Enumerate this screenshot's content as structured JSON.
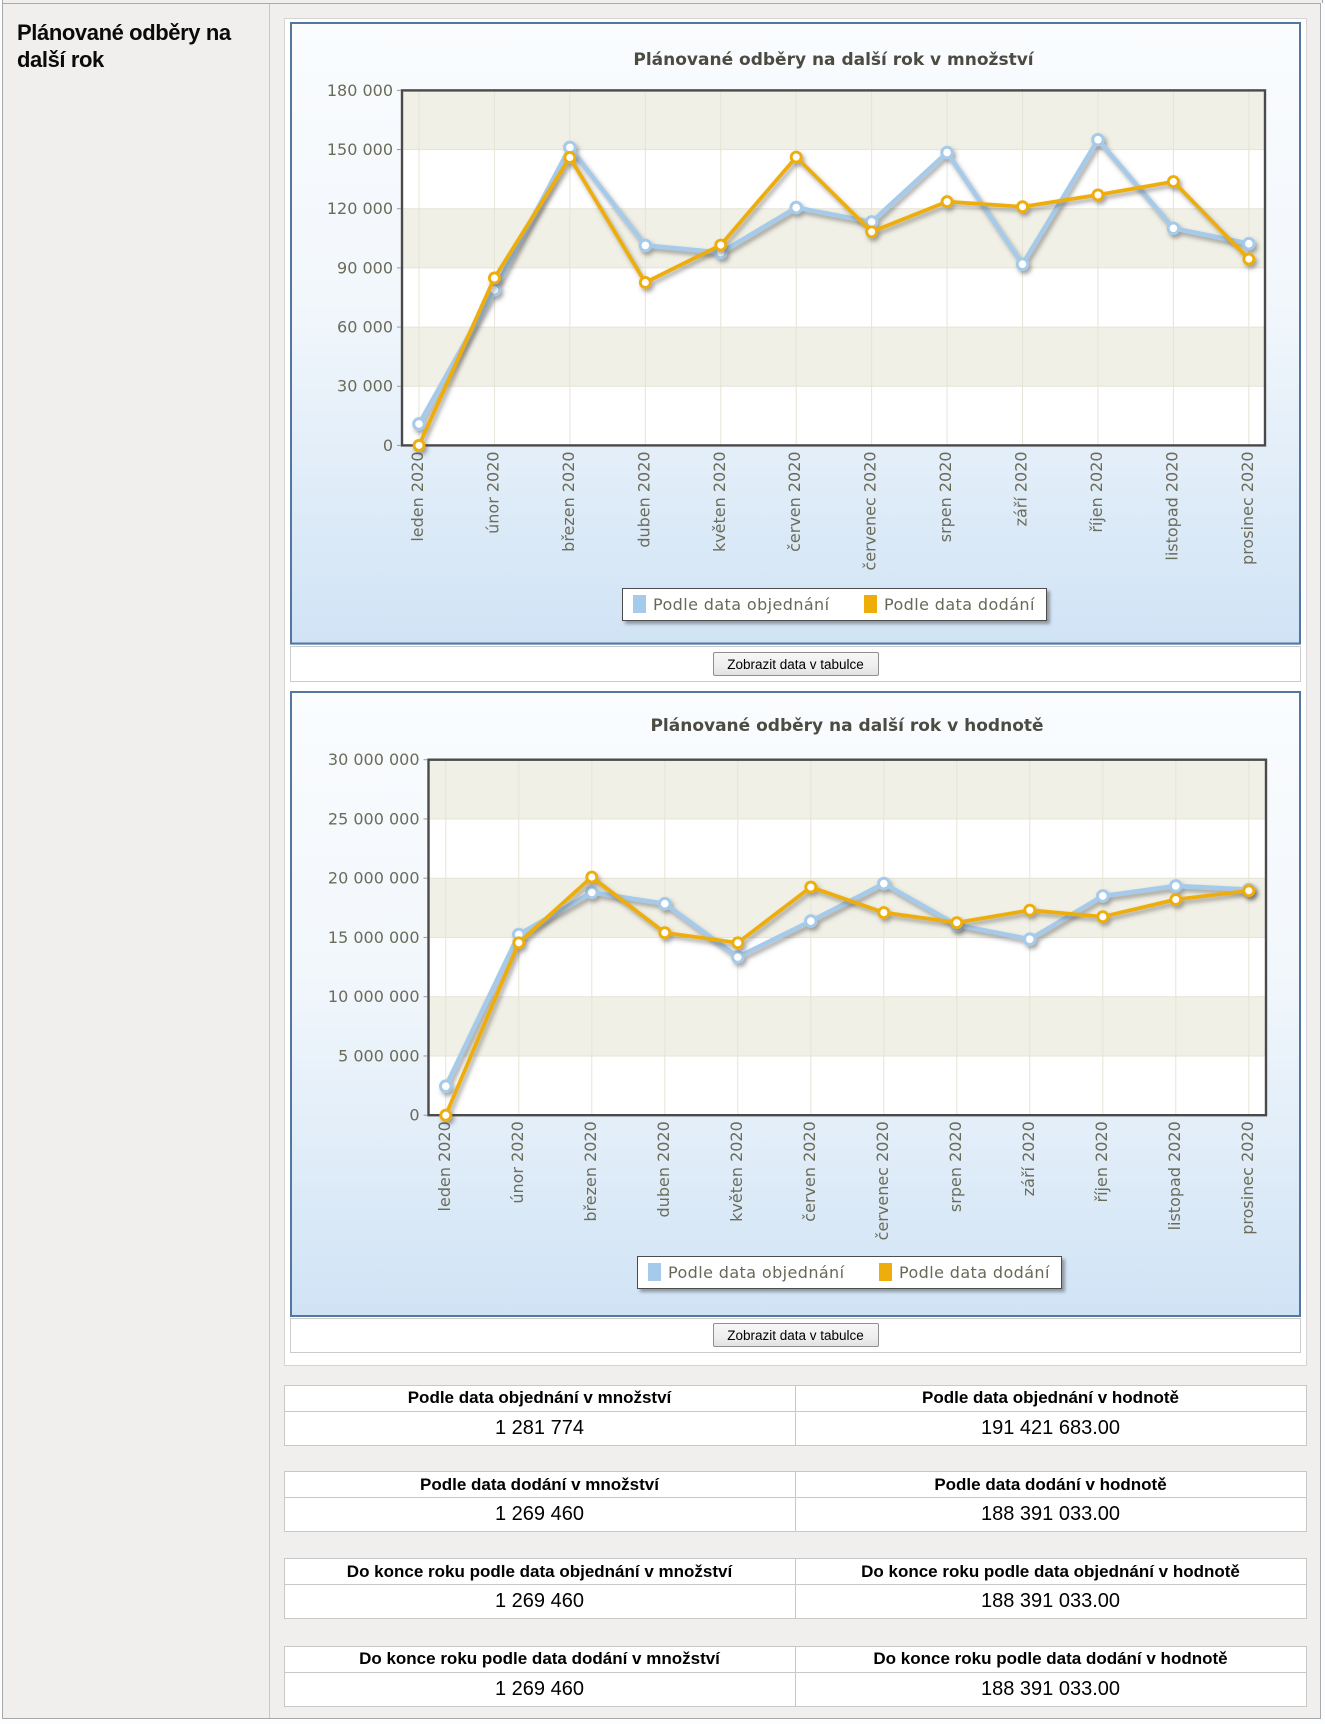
{
  "sidebar": {
    "title": "Plánované odběry na\ndalší rok"
  },
  "buttons": {
    "show_table_label": "Zobrazit data v tabulce"
  },
  "chart_data": [
    {
      "type": "line",
      "title": "Plánované odběry na další rok v množství",
      "categories": [
        "leden 2020",
        "únor 2020",
        "březen 2020",
        "duben 2020",
        "květen 2020",
        "červen 2020",
        "červenec 2020",
        "srpen 2020",
        "září 2020",
        "říjen 2020",
        "listopad 2020",
        "prosinec 2020"
      ],
      "series": [
        {
          "name": "Podle data objednání",
          "color": "#a6cbea",
          "values": [
            10874,
            78900,
            151100,
            101400,
            97800,
            120600,
            113300,
            148500,
            91900,
            155000,
            110100,
            102300
          ]
        },
        {
          "name": "Podle data dodání",
          "color": "#edae0c",
          "values": [
            0,
            84900,
            146000,
            82600,
            101600,
            146200,
            108300,
            123600,
            121000,
            127000,
            133760,
            94500
          ]
        }
      ],
      "ylim": [
        0,
        180000
      ],
      "ytick_step": 30000,
      "ytick_labels": [
        "0",
        "30 000",
        "60 000",
        "90 000",
        "120 000",
        "150 000",
        "180 000"
      ],
      "xlabel": "",
      "ylabel": "",
      "grid": true,
      "legend_position": "bottom"
    },
    {
      "type": "line",
      "title": "Plánované odběry na další rok v hodnotě",
      "categories": [
        "leden 2020",
        "únor 2020",
        "březen 2020",
        "duben 2020",
        "květen 2020",
        "červen 2020",
        "červenec 2020",
        "srpen 2020",
        "září 2020",
        "říjen 2020",
        "listopad 2020",
        "prosinec 2020"
      ],
      "series": [
        {
          "name": "Podle data objednání",
          "color": "#a6cbea",
          "values": [
            2450000,
            15250000,
            18800000,
            17850000,
            13350000,
            16380000,
            19550000,
            16050000,
            14850000,
            18500000,
            19350000,
            19041683
          ]
        },
        {
          "name": "Podle data dodání",
          "color": "#edae0c",
          "values": [
            0,
            14550000,
            20100000,
            15400000,
            14550000,
            19250000,
            17100000,
            16250000,
            17300000,
            16750000,
            18200000,
            18941033
          ]
        }
      ],
      "ylim": [
        0,
        30000000
      ],
      "ytick_step": 5000000,
      "ytick_labels": [
        "0",
        "5 000 000",
        "10 000 000",
        "15 000 000",
        "20 000 000",
        "25 000 000",
        "30 000 000"
      ],
      "xlabel": "",
      "ylabel": "",
      "grid": true,
      "legend_position": "bottom"
    }
  ],
  "tables": [
    {
      "cols": [
        {
          "header": "Podle data objednání v množství",
          "value": "1 281 774"
        },
        {
          "header": "Podle data objednání v hodnotě",
          "value": "191 421 683.00"
        }
      ]
    },
    {
      "cols": [
        {
          "header": "Podle data dodání v množství",
          "value": "1 269 460"
        },
        {
          "header": "Podle data dodání v hodnotě",
          "value": "188 391 033.00"
        }
      ]
    },
    {
      "cols": [
        {
          "header": "Do konce roku podle data objednání v množství",
          "value": "1 269 460"
        },
        {
          "header": "Do konce roku podle data objednání v hodnotě",
          "value": "188 391 033.00"
        }
      ]
    },
    {
      "cols": [
        {
          "header": "Do konce roku podle data dodání v množství",
          "value": "1 269 460"
        },
        {
          "header": "Do konce roku podle data dodání v hodnotě",
          "value": "188 391 033.00"
        }
      ]
    }
  ],
  "colors": {
    "series_order": "#a6cbea",
    "series_delivery": "#edae0c",
    "canvas_border": "#53779f",
    "plot_border": "#4a4a4a",
    "band_beige": "#f1f0e6",
    "gridline": "#e6e4d6",
    "axis_text": "#6b6b59",
    "page_bg": "#f0efed"
  }
}
